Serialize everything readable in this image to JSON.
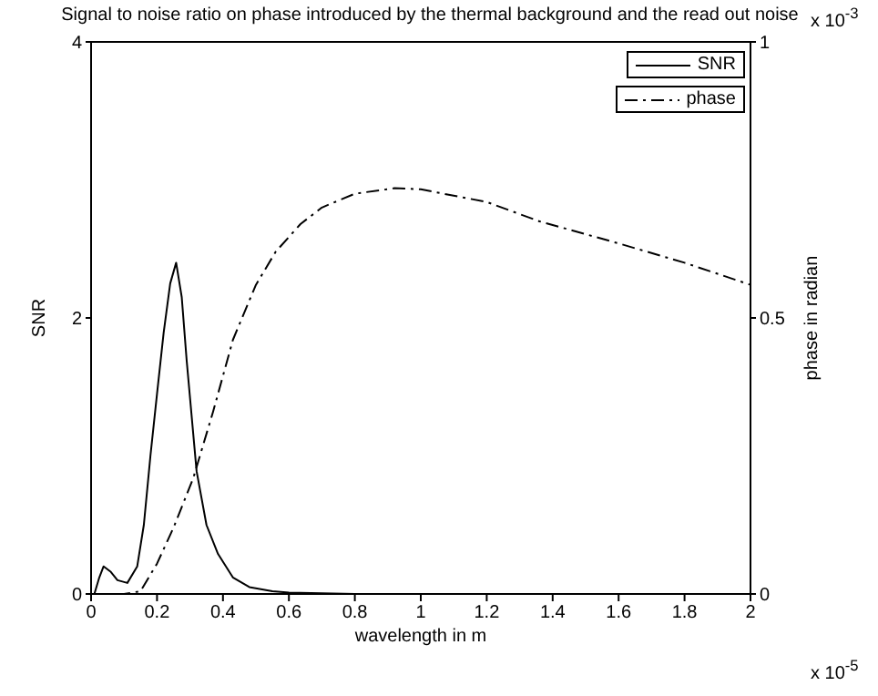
{
  "chart_data": {
    "type": "line",
    "title": "Signal to noise ratio on phase introduced by the thermal background and the read out noise",
    "xlabel": "wavelength in m",
    "ylabel": "SNR",
    "y2label": "phase in radian",
    "annotations": [
      "x 10$^{-5}$",
      "x 10$^{-3}$"
    ],
    "xlim": [
      0,
      2
    ],
    "xticks": [
      0,
      0.2,
      0.4,
      0.6,
      0.8,
      1,
      1.2,
      1.4,
      1.6,
      1.8,
      2
    ],
    "ylim": [
      0,
      4
    ],
    "yticks": [
      0,
      2,
      4
    ],
    "y2lim": [
      0,
      1
    ],
    "y2ticks": [
      0,
      0.5,
      1
    ],
    "legend": "top right",
    "marker": "none",
    "series": [
      {
        "name": "SNR",
        "color": "#000000",
        "line_style": "solid",
        "x": [
          0.01,
          0.025,
          0.038,
          0.06,
          0.08,
          0.11,
          0.14,
          0.16,
          0.18,
          0.2,
          0.22,
          0.24,
          0.258,
          0.275,
          0.29,
          0.32,
          0.35,
          0.385,
          0.43,
          0.48,
          0.55,
          0.6,
          0.8,
          1,
          1.5,
          2
        ],
        "values": [
          0,
          0.12,
          0.2,
          0.16,
          0.1,
          0.08,
          0.2,
          0.5,
          1.0,
          1.45,
          1.89,
          2.25,
          2.4,
          2.15,
          1.69,
          0.89,
          0.5,
          0.29,
          0.12,
          0.05,
          0.02,
          0.01,
          0,
          0,
          0,
          0
        ]
      },
      {
        "name": "phase",
        "color": "#000000",
        "line_style": "dashed",
        "axis": "y2",
        "x": [
          0,
          0.1,
          0.15,
          0.2,
          0.25,
          0.31,
          0.37,
          0.43,
          0.5,
          0.56,
          0.635,
          0.7,
          0.8,
          0.92,
          1,
          1.2,
          1.36,
          1.6,
          1.8,
          2
        ],
        "values": [
          0,
          0,
          0.005,
          0.055,
          0.12,
          0.21,
          0.33,
          0.46,
          0.56,
          0.62,
          0.67,
          0.7,
          0.725,
          0.735,
          0.733,
          0.71,
          0.675,
          0.635,
          0.6,
          0.56
        ]
      }
    ]
  }
}
